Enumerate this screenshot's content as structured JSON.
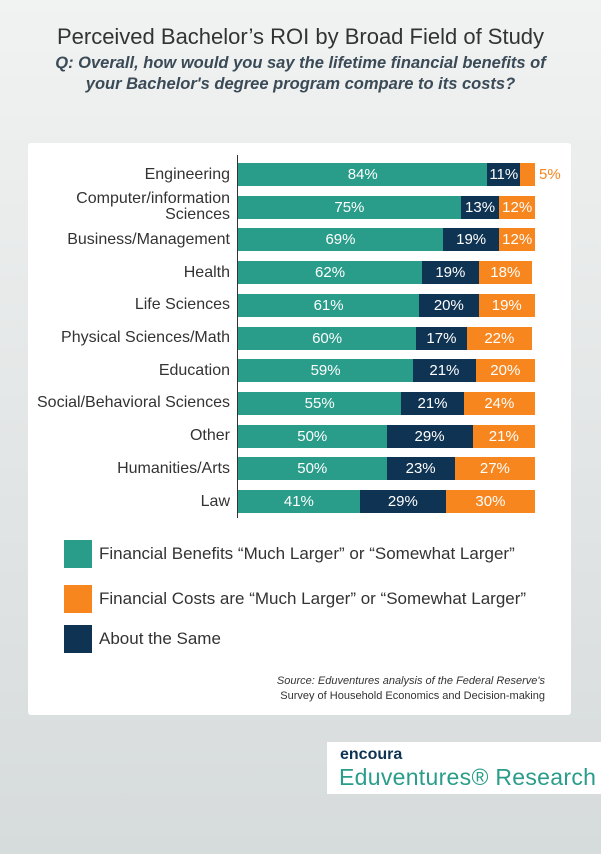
{
  "chart_data": {
    "type": "bar",
    "orientation": "horizontal",
    "stacked": true,
    "title": "Perceived Bachelor’s ROI by Broad Field of Study",
    "subtitle": "Q: Overall, how would you say the lifetime financial benefits of your Bachelor's degree program compare to its costs?",
    "categories": [
      "Engineering",
      "Computer/information Sciences",
      "Business/Management",
      "Health",
      "Life Sciences",
      "Physical Sciences/Math",
      "Education",
      "Social/Behavioral Sciences",
      "Other",
      "Humanities/Arts",
      "Law"
    ],
    "series": [
      {
        "name": "Financial Benefits “Much Larger” or “Somewhat Larger”",
        "color": "#2a9d8a",
        "values": [
          84,
          75,
          69,
          62,
          61,
          60,
          59,
          55,
          50,
          50,
          41
        ],
        "value_labels": [
          "84%",
          "75%",
          "69%",
          "62%",
          "61%",
          "60%",
          "59%",
          "55%",
          "50%",
          "50%",
          "41%"
        ]
      },
      {
        "name": "About the Same",
        "color": "#0f3352",
        "values": [
          11,
          13,
          19,
          19,
          20,
          17,
          21,
          21,
          29,
          23,
          29
        ],
        "value_labels": [
          "11%",
          "13%",
          "19%",
          "19%",
          "20%",
          "17%",
          "21%",
          "21%",
          "29%",
          "23%",
          "29%"
        ]
      },
      {
        "name": "Financial Costs are “Much Larger” or “Somewhat Larger”",
        "color": "#f7861e",
        "values": [
          5,
          12,
          12,
          18,
          19,
          22,
          20,
          24,
          21,
          27,
          30
        ],
        "value_labels": [
          "5%",
          "12%",
          "12%",
          "18%",
          "19%",
          "22%",
          "20%",
          "24%",
          "21%",
          "27%",
          "30%"
        ]
      }
    ],
    "source": [
      "Source: Eduventures analysis of the Federal Reserve's",
      "Survey of Household Economics and Decision-making"
    ]
  },
  "logo": {
    "brand": "encoura",
    "name": "Eduventures® Research"
  }
}
